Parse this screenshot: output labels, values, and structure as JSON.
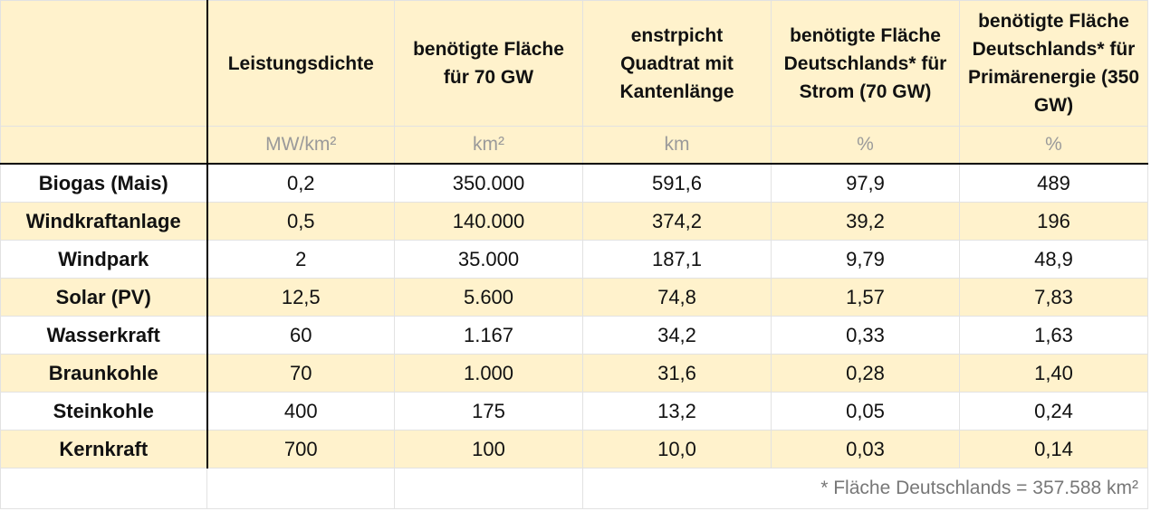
{
  "header": {
    "columns": [
      "",
      "Leistungsdichte",
      "benötigte Fläche für 70 GW",
      "enstrpicht Quadtrat mit Kantenlänge",
      "benötigte Fläche Deutschlands* für Strom (70 GW)",
      "benötigte Fläche Deutschlands* für Primärenergie (350 GW)"
    ],
    "units": [
      "",
      "MW/km²",
      "km²",
      "km",
      "%",
      "%"
    ]
  },
  "rows": [
    {
      "name": "Biogas (Mais)",
      "density": "0,2",
      "area": "350.000",
      "edge": "591,6",
      "pct_power": "97,9",
      "pct_primary": "489"
    },
    {
      "name": "Windkraftanlage",
      "density": "0,5",
      "area": "140.000",
      "edge": "374,2",
      "pct_power": "39,2",
      "pct_primary": "196"
    },
    {
      "name": "Windpark",
      "density": "2",
      "area": "35.000",
      "edge": "187,1",
      "pct_power": "9,79",
      "pct_primary": "48,9"
    },
    {
      "name": "Solar (PV)",
      "density": "12,5",
      "area": "5.600",
      "edge": "74,8",
      "pct_power": "1,57",
      "pct_primary": "7,83"
    },
    {
      "name": "Wasserkraft",
      "density": "60",
      "area": "1.167",
      "edge": "34,2",
      "pct_power": "0,33",
      "pct_primary": "1,63"
    },
    {
      "name": "Braunkohle",
      "density": "70",
      "area": "1.000",
      "edge": "31,6",
      "pct_power": "0,28",
      "pct_primary": "1,40"
    },
    {
      "name": "Steinkohle",
      "density": "400",
      "area": "175",
      "edge": "13,2",
      "pct_power": "0,05",
      "pct_primary": "0,24"
    },
    {
      "name": "Kernkraft",
      "density": "700",
      "area": "100",
      "edge": "10,0",
      "pct_power": "0,03",
      "pct_primary": "0,14"
    }
  ],
  "footnote": "* Fläche Deutschlands = 357.588 km²",
  "colors": {
    "header_fill": "#fff2cc",
    "grid": "#e2e2e2",
    "border": "#000000",
    "unit_text": "#9a9a9a"
  }
}
